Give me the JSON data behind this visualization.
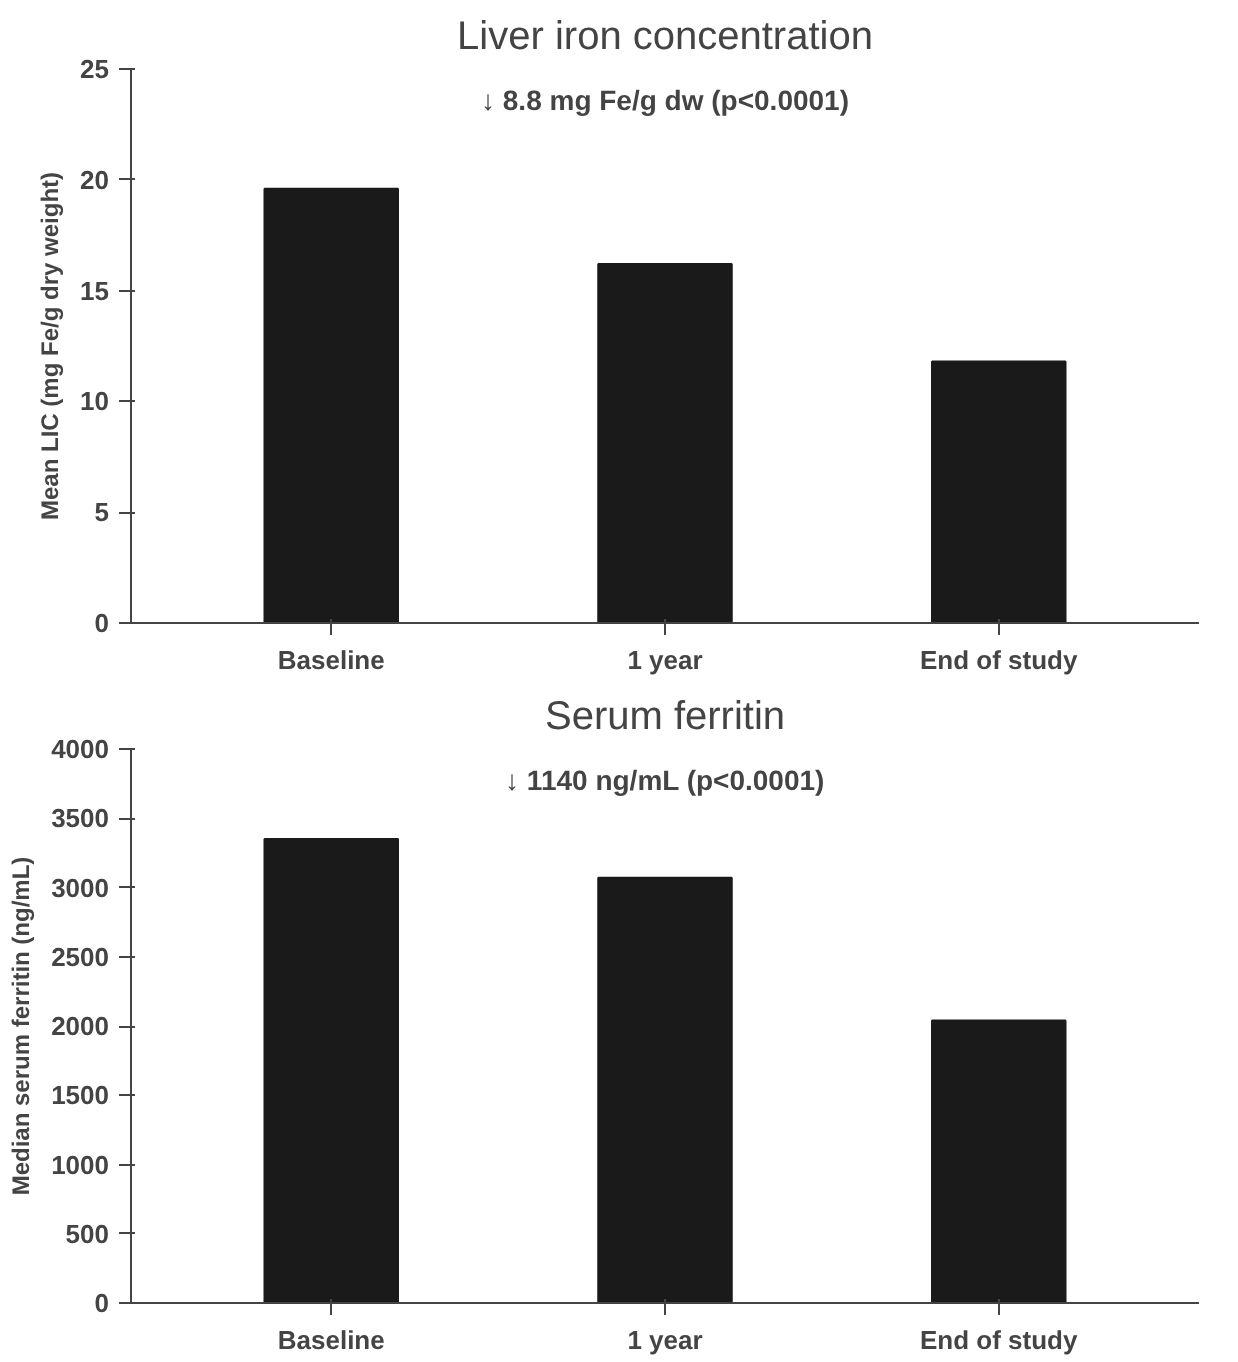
{
  "chart_data": [
    {
      "type": "bar",
      "title": "Liver iron concentration",
      "ylabel": "Mean LIC (mg Fe/g dry weight)",
      "categories": [
        "Baseline",
        "1 year",
        "End of study"
      ],
      "values": [
        19.6,
        16.2,
        11.8
      ],
      "color": "#1a1a1a",
      "ylim": [
        0,
        25
      ],
      "yticks": [
        0,
        5,
        10,
        15,
        20,
        25
      ],
      "grid": false,
      "annotations": [
        "↓ 8.8 mg Fe/g dw (p<0.0001)"
      ]
    },
    {
      "type": "bar",
      "title": "Serum ferritin",
      "ylabel": "Median serum ferritin (ng/mL)",
      "categories": [
        "Baseline",
        "1 year",
        "End of study"
      ],
      "values": [
        3350,
        3070,
        2040
      ],
      "color": "#1a1a1a",
      "ylim": [
        0,
        4000
      ],
      "yticks": [
        0,
        500,
        1000,
        1500,
        2000,
        2500,
        3000,
        3500,
        4000
      ],
      "grid": false,
      "annotations": [
        "↓ 1140 ng/mL (p<0.0001)"
      ]
    }
  ]
}
